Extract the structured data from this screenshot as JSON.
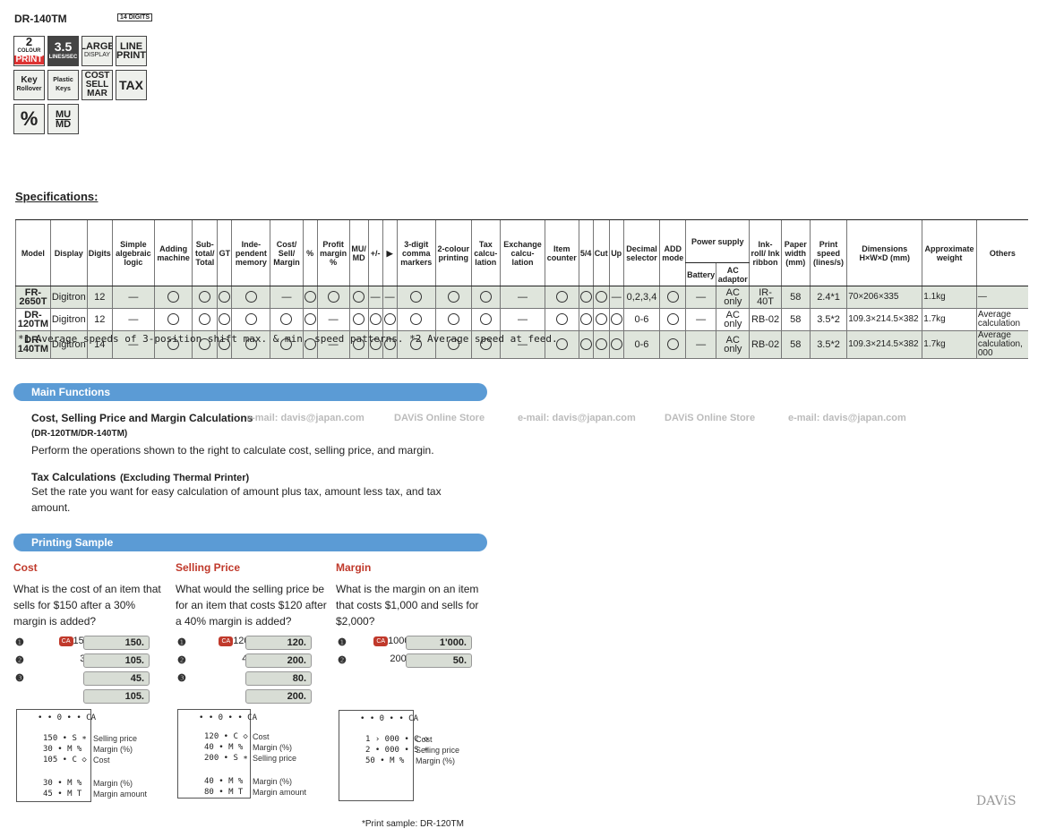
{
  "header": {
    "model": "DR-140TM",
    "digits": "14 DIGITS"
  },
  "features": [
    [
      "2",
      "COLOUR",
      "PRINT"
    ],
    [
      "3.5",
      "LINES/SEC",
      ""
    ],
    [
      "LARGE",
      "DISPLAY",
      ""
    ],
    [
      "LINE",
      "PRINT",
      ""
    ],
    [
      "Key",
      "Rollover",
      ""
    ],
    [
      "Plastic",
      "Keys",
      ""
    ],
    [
      "COST",
      "SELL",
      "MAR"
    ],
    [
      "TAX",
      "",
      ""
    ],
    [
      "%",
      "",
      ""
    ],
    [
      "MU",
      "MD",
      ""
    ]
  ],
  "specs": {
    "heading": "Specifications:",
    "headers": [
      "Model",
      "Display",
      "Digits",
      "Simple algebraic logic",
      "Adding machine",
      "Sub-total/ Total",
      "GT",
      "Inde-pendent memory",
      "Cost/ Sell/ Margin",
      "%",
      "Profit margin %",
      "MU/ MD",
      "+/-",
      "▶",
      "3-digit comma markers",
      "2-colour printing",
      "Tax calcu-lation",
      "Exchange calcu-lation",
      "Item counter",
      "5/4",
      "Cut",
      "Up",
      "Decimal selector",
      "ADD mode",
      "Power supply",
      "Ink-roll/ Ink ribbon",
      "Paper width (mm)",
      "Print speed (lines/s)",
      "Dimensions H×W×D (mm)",
      "Approximate weight",
      "Others"
    ],
    "power_sub": [
      "Battery",
      "AC adaptor"
    ],
    "rows": [
      [
        "FR-2650T",
        "Digitron",
        "12",
        "—",
        "○",
        "○",
        "○",
        "○",
        "—",
        "○",
        "○",
        "○",
        "—",
        "—",
        "○",
        "○",
        "○",
        "—",
        "○",
        "○",
        "○",
        "—",
        "0,2,3,4",
        "○",
        "—",
        "AC only",
        "IR-40T",
        "58",
        "2.4*1",
        "70×206×335",
        "1.1kg",
        "—"
      ],
      [
        "DR-120TM",
        "Digitron",
        "12",
        "—",
        "○",
        "○",
        "○",
        "○",
        "○",
        "○",
        "—",
        "○",
        "○",
        "○",
        "○",
        "○",
        "○",
        "—",
        "○",
        "○",
        "○",
        "○",
        "0-6",
        "○",
        "—",
        "AC only",
        "RB-02",
        "58",
        "3.5*2",
        "109.3×214.5×382",
        "1.7kg",
        "Average calculation"
      ],
      [
        "DR-140TM",
        "Digitron",
        "14",
        "—",
        "○",
        "○",
        "○",
        "○",
        "○",
        "○",
        "—",
        "○",
        "○",
        "○",
        "○",
        "○",
        "○",
        "—",
        "○",
        "○",
        "○",
        "○",
        "0-6",
        "○",
        "—",
        "AC only",
        "RB-02",
        "58",
        "3.5*2",
        "109.3×214.5×382",
        "1.7kg",
        "Average calculation, 000"
      ]
    ],
    "footnote": "*1 Average speeds of 3-position shift max. & min. speed patterns.   *2 Average speed at feed."
  },
  "main_functions": {
    "title": "Main Functions",
    "item1_title": "Cost, Selling Price and Margin Calculations",
    "item1_sub": "(DR-120TM/DR-140TM)",
    "item1_text": "Perform the operations shown to the right to calculate cost, selling price, and margin.",
    "item2_title": "Tax Calculations",
    "item2_sub": "(Excluding Thermal Printer)",
    "item2_text": "Set the rate you want for easy calculation of amount plus tax, amount less tax, and tax amount."
  },
  "watermark": [
    "e-mail:  davis@japan.com",
    "DAViS  Online  Store",
    "e-mail:  davis@japan.com",
    "DAViS  Online  Store",
    "e-mail:  davis@japan.com"
  ],
  "printing": {
    "title": "Printing Sample",
    "footnote": "*Print sample: DR-120TM",
    "brand": "DAViS",
    "cost": {
      "title": "Cost",
      "q": "What is the cost of an item that sells for $150 after a 30% margin is added?",
      "inputs": [
        "150",
        "30",
        "",
        ""
      ],
      "keys": [
        "SELL",
        "MAR",
        "MAR",
        "COST"
      ],
      "displays": [
        "150.",
        "105.",
        "45.",
        "105."
      ],
      "tape": [
        "• • 0 • • CA",
        "150 • S ∗",
        "30 • M %",
        "105 • C ◇",
        "30 • M %",
        "45 • M T"
      ],
      "ann": [
        "Selling price",
        "Margin (%)",
        "Cost",
        "Margin (%)",
        "Margin amount"
      ]
    },
    "sell": {
      "title": "Selling Price",
      "q": "What would the selling price be for an item that costs $120 after a 40% margin is added?",
      "inputs": [
        "120",
        "40",
        "",
        ""
      ],
      "keys": [
        "COST",
        "MAR",
        "MAR",
        "SELL"
      ],
      "displays": [
        "120.",
        "200.",
        "80.",
        "200."
      ],
      "tape": [
        "• • 0 • • CA",
        "120 • C ◇",
        "40 • M %",
        "200 • S ∗",
        "40 • M %",
        "80 • M T"
      ],
      "ann": [
        "Cost",
        "Margin (%)",
        "Selling price",
        "Margin (%)",
        "Margin amount"
      ]
    },
    "margin": {
      "title": "Margin",
      "q": "What is the margin on an item that costs $1,000 and sells for $2,000?",
      "inputs": [
        "1000",
        "2000"
      ],
      "keys": [
        "COST",
        "SELL"
      ],
      "displays": [
        "1'000.",
        "50."
      ],
      "tape": [
        "• • 0 • • CA",
        "1 › 000 • C ◇",
        "2 • 000 • S ∗",
        "50 • M %"
      ],
      "ann": [
        "Cost",
        "Selling price",
        "Margin (%)"
      ]
    }
  }
}
